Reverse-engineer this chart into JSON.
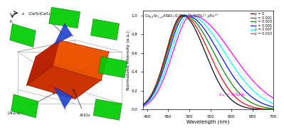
{
  "xlabel": "Wavelength (nm)",
  "ylabel": "Normalized Intensity (a.u.)",
  "x_min": 390,
  "x_max": 700,
  "y_min": 0.0,
  "y_max": 1.05,
  "x_ticks": [
    400,
    450,
    500,
    550,
    600,
    650,
    700
  ],
  "legend_entries": [
    "y = 0",
    "y = 0.001",
    "y = 0.003",
    "y = 0.005",
    "y = 0.007",
    "y = 0.010"
  ],
  "line_colors": [
    "black",
    "red",
    "green",
    "blue",
    "cyan",
    "magenta"
  ],
  "peak_positions": [
    483,
    485,
    488,
    492,
    498,
    505
  ],
  "left_sigmas": [
    38,
    39,
    40,
    41,
    42,
    44
  ],
  "right_sigmas": [
    55,
    62,
    70,
    78,
    86,
    95
  ],
  "background_color": "white",
  "left_panel_label1": "(Ca/Sr/Ce/Li)O$_8$",
  "left_panel_label2": "(Al2/Si)O$_4$",
  "left_panel_label3": "Al1O$_4$"
}
